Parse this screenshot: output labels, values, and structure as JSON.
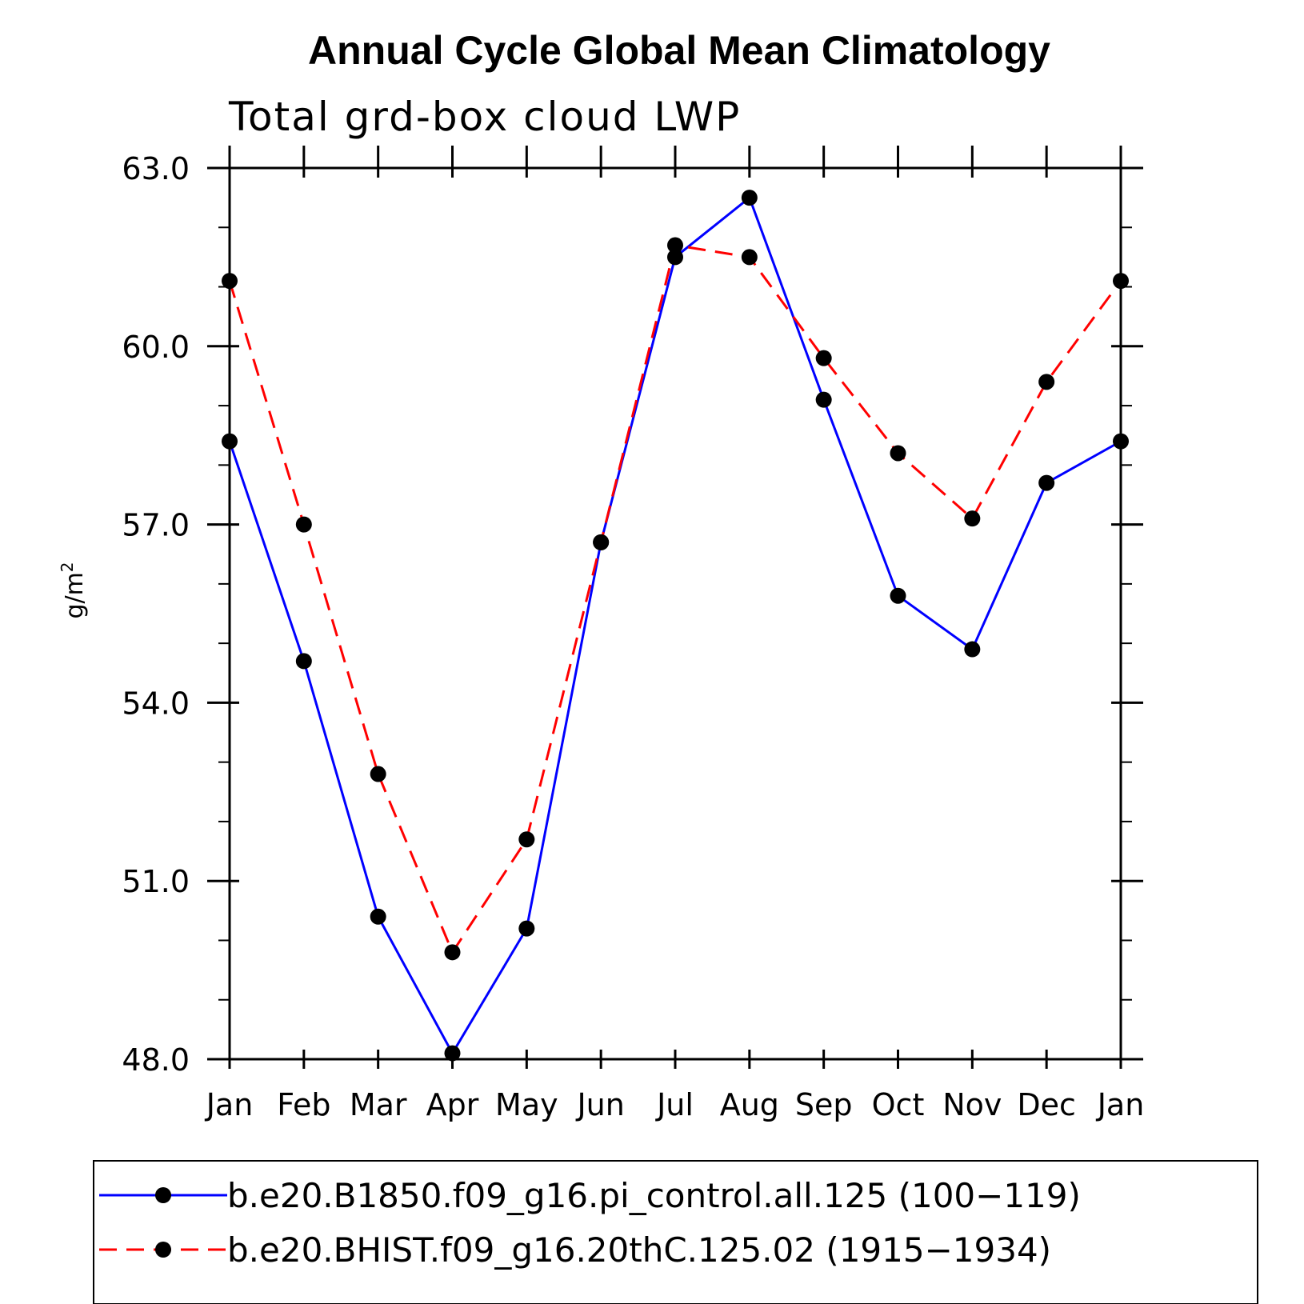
{
  "chart_data": {
    "type": "line",
    "title": "Annual Cycle Global Mean Climatology",
    "subtitle": "Total grd-box cloud LWP",
    "ylabel_base": "g/m",
    "ylabel_sup": "2",
    "xlabel": "",
    "categories": [
      "Jan",
      "Feb",
      "Mar",
      "Apr",
      "May",
      "Jun",
      "Jul",
      "Aug",
      "Sep",
      "Oct",
      "Nov",
      "Dec",
      "Jan"
    ],
    "ylim": [
      48.0,
      63.0
    ],
    "yticks": [
      "48.0",
      "51.0",
      "54.0",
      "57.0",
      "60.0",
      "63.0"
    ],
    "ytick_values": [
      48,
      51,
      54,
      57,
      60,
      63
    ],
    "series": [
      {
        "name": "b.e20.B1850.f09_g16.pi_control.all.125 (100−119)",
        "color": "#0000ff",
        "dash": "solid",
        "values": [
          58.4,
          54.7,
          50.4,
          48.1,
          50.2,
          56.7,
          61.5,
          62.5,
          59.1,
          55.8,
          54.9,
          57.7,
          58.4
        ]
      },
      {
        "name": "b.e20.BHIST.f09_g16.20thC.125.02 (1915−1934)",
        "color": "#ff0000",
        "dash": "dashed",
        "values": [
          61.1,
          57.0,
          52.8,
          49.8,
          51.7,
          56.7,
          61.7,
          61.5,
          59.8,
          58.2,
          57.1,
          59.4,
          61.1
        ]
      }
    ],
    "grid": false,
    "legend_position": "bottom"
  }
}
